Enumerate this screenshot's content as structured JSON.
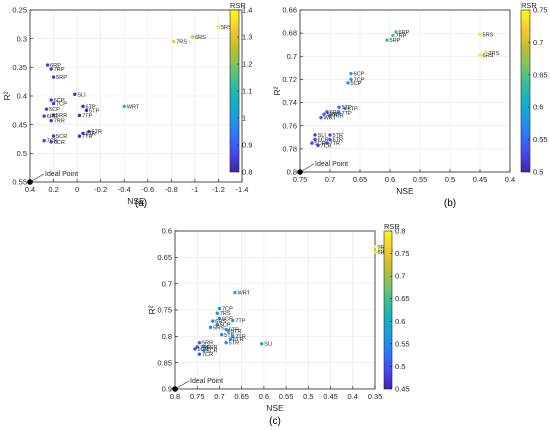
{
  "colormap": [
    "#3e26a8",
    "#4745f2",
    "#2f74fd",
    "#1a9ce0",
    "#10b3c4",
    "#3abf98",
    "#80c65a",
    "#c6c02b",
    "#f7cb33",
    "#f9fb15"
  ],
  "chart_data": [
    {
      "type": "scatter",
      "panel_label": "(a)",
      "xlabel": "NSE",
      "ylabel": "R²",
      "colorbar_label": "RSR",
      "xlim": [
        0.4,
        -1.4
      ],
      "ylim": [
        0.25,
        0.55
      ],
      "x_ticks": [
        0.4,
        0.2,
        0,
        -0.2,
        -0.4,
        -0.6,
        -0.8,
        -1,
        -1.2,
        -1.4
      ],
      "x_tick_labels": [
        "0.4",
        "0.2",
        "0",
        "-0.2",
        "-0.4",
        "-0.6",
        "-0.8",
        "-1",
        "-1.2",
        "-1.4"
      ],
      "y_ticks": [
        0.25,
        0.3,
        0.35,
        0.4,
        0.45,
        0.5,
        0.55
      ],
      "y_tick_labels": [
        "0.25",
        "0.3",
        "0.35",
        "0.4",
        "0.45",
        "0.5",
        "0.55"
      ],
      "crange": [
        0.8,
        1.4
      ],
      "c_ticks": [
        0.8,
        0.9,
        1.0,
        1.1,
        1.2,
        1.3,
        1.4
      ],
      "c_tick_labels": [
        "0.8",
        "0.9",
        "1",
        "1.1",
        "1.2",
        "1.3",
        "1.4"
      ],
      "ideal_point": {
        "x": 0.4,
        "y": 0.55,
        "label": "Ideal Point"
      },
      "points": [
        {
          "label": "5RS",
          "x": -1.2,
          "y": 0.28,
          "rsr": 1.38
        },
        {
          "label": "6RS",
          "x": -0.98,
          "y": 0.297,
          "rsr": 1.3
        },
        {
          "label": "7RS",
          "x": -0.82,
          "y": 0.305,
          "rsr": 1.32
        },
        {
          "label": "WRT",
          "x": -0.4,
          "y": 0.418,
          "rsr": 1.1
        },
        {
          "label": "6RP",
          "x": 0.25,
          "y": 0.346,
          "rsr": 0.84
        },
        {
          "label": "7RP",
          "x": 0.22,
          "y": 0.353,
          "rsr": 0.84
        },
        {
          "label": "5RP",
          "x": 0.2,
          "y": 0.367,
          "rsr": 0.85
        },
        {
          "label": "SLI",
          "x": 0.02,
          "y": 0.397,
          "rsr": 0.82
        },
        {
          "label": "6CP",
          "x": 0.22,
          "y": 0.407,
          "rsr": 0.84
        },
        {
          "label": "7CP",
          "x": 0.2,
          "y": 0.413,
          "rsr": 0.84
        },
        {
          "label": "6TP",
          "x": -0.05,
          "y": 0.418,
          "rsr": 0.82
        },
        {
          "label": "5CP",
          "x": 0.26,
          "y": 0.423,
          "rsr": 0.85
        },
        {
          "label": "5TP",
          "x": -0.08,
          "y": 0.425,
          "rsr": 0.82
        },
        {
          "label": "5RR",
          "x": 0.2,
          "y": 0.433,
          "rsr": 0.84
        },
        {
          "label": "6RR",
          "x": 0.28,
          "y": 0.435,
          "rsr": 0.85
        },
        {
          "label": "7TP",
          "x": -0.02,
          "y": 0.434,
          "rsr": 0.82
        },
        {
          "label": "7RR",
          "x": 0.22,
          "y": 0.443,
          "rsr": 0.84
        },
        {
          "label": "5TR",
          "x": -0.1,
          "y": 0.462,
          "rsr": 0.82
        },
        {
          "label": "6TR",
          "x": -0.05,
          "y": 0.465,
          "rsr": 0.82
        },
        {
          "label": "7TR",
          "x": -0.02,
          "y": 0.47,
          "rsr": 0.82
        },
        {
          "label": "5CR",
          "x": 0.2,
          "y": 0.47,
          "rsr": 0.84
        },
        {
          "label": "7CR",
          "x": 0.28,
          "y": 0.478,
          "rsr": 0.85
        },
        {
          "label": "6CR",
          "x": 0.22,
          "y": 0.48,
          "rsr": 0.84
        }
      ]
    },
    {
      "type": "scatter",
      "panel_label": "(b)",
      "xlabel": "NSE",
      "ylabel": "R²",
      "colorbar_label": "RSR",
      "xlim": [
        0.75,
        0.4
      ],
      "ylim": [
        0.66,
        0.8
      ],
      "x_ticks": [
        0.75,
        0.7,
        0.65,
        0.6,
        0.55,
        0.5,
        0.45,
        0.4
      ],
      "x_tick_labels": [
        "0.75",
        "0.7",
        "0.65",
        "0.6",
        "0.55",
        "0.5",
        "0.45",
        "0.4"
      ],
      "y_ticks": [
        0.66,
        0.68,
        0.7,
        0.72,
        0.74,
        0.76,
        0.78,
        0.8
      ],
      "y_tick_labels": [
        "0.66",
        "0.68",
        "0.7",
        "0.72",
        "0.74",
        "0.76",
        "0.78",
        "0.8"
      ],
      "crange": [
        0.5,
        0.75
      ],
      "c_ticks": [
        0.5,
        0.55,
        0.6,
        0.65,
        0.7,
        0.75
      ],
      "c_tick_labels": [
        "0.5",
        "0.55",
        "0.6",
        "0.65",
        "0.7",
        "0.75"
      ],
      "ideal_point": {
        "x": 0.75,
        "y": 0.8,
        "label": "Ideal Point"
      },
      "points": [
        {
          "label": "6RP",
          "x": 0.59,
          "y": 0.679,
          "rsr": 0.65
        },
        {
          "label": "7RP",
          "x": 0.595,
          "y": 0.682,
          "rsr": 0.65
        },
        {
          "label": "5RP",
          "x": 0.605,
          "y": 0.686,
          "rsr": 0.64
        },
        {
          "label": "5RS",
          "x": 0.45,
          "y": 0.681,
          "rsr": 0.74
        },
        {
          "label": "6RS",
          "x": 0.45,
          "y": 0.699,
          "rsr": 0.74
        },
        {
          "label": "7RS",
          "x": 0.44,
          "y": 0.697,
          "rsr": 0.73
        },
        {
          "label": "6CP",
          "x": 0.665,
          "y": 0.715,
          "rsr": 0.58
        },
        {
          "label": "7CP",
          "x": 0.665,
          "y": 0.72,
          "rsr": 0.58
        },
        {
          "label": "5CP",
          "x": 0.67,
          "y": 0.723,
          "rsr": 0.57
        },
        {
          "label": "5TP",
          "x": 0.685,
          "y": 0.744,
          "rsr": 0.55
        },
        {
          "label": "6TP",
          "x": 0.675,
          "y": 0.745,
          "rsr": 0.55
        },
        {
          "label": "6RR",
          "x": 0.705,
          "y": 0.748,
          "rsr": 0.54
        },
        {
          "label": "5RR",
          "x": 0.71,
          "y": 0.75,
          "rsr": 0.54
        },
        {
          "label": "7TP",
          "x": 0.685,
          "y": 0.749,
          "rsr": 0.55
        },
        {
          "label": "7RR",
          "x": 0.7,
          "y": 0.751,
          "rsr": 0.54
        },
        {
          "label": "WRT",
          "x": 0.715,
          "y": 0.753,
          "rsr": 0.54
        },
        {
          "label": "SLI",
          "x": 0.725,
          "y": 0.768,
          "rsr": 0.52
        },
        {
          "label": "5TR",
          "x": 0.7,
          "y": 0.768,
          "rsr": 0.53
        },
        {
          "label": "6TR",
          "x": 0.7,
          "y": 0.772,
          "rsr": 0.53
        },
        {
          "label": "6CR",
          "x": 0.725,
          "y": 0.772,
          "rsr": 0.52
        },
        {
          "label": "5CR",
          "x": 0.73,
          "y": 0.775,
          "rsr": 0.52
        },
        {
          "label": "7TR",
          "x": 0.705,
          "y": 0.775,
          "rsr": 0.53
        },
        {
          "label": "7CR",
          "x": 0.72,
          "y": 0.777,
          "rsr": 0.52
        }
      ]
    },
    {
      "type": "scatter",
      "panel_label": "(c)",
      "xlabel": "NSE",
      "ylabel": "R²",
      "colorbar_label": "RSR",
      "xlim": [
        0.8,
        0.35
      ],
      "ylim": [
        0.6,
        0.9
      ],
      "x_ticks": [
        0.8,
        0.75,
        0.7,
        0.65,
        0.6,
        0.55,
        0.5,
        0.45,
        0.4,
        0.35
      ],
      "x_tick_labels": [
        "0.8",
        "0.75",
        "0.7",
        "0.65",
        "0.6",
        "0.55",
        "0.5",
        "0.45",
        "0.4",
        "0.35"
      ],
      "y_ticks": [
        0.6,
        0.65,
        0.7,
        0.75,
        0.8,
        0.85,
        0.9
      ],
      "y_tick_labels": [
        "0.6",
        "0.65",
        "0.7",
        "0.75",
        "0.8",
        "0.85",
        "0.9"
      ],
      "crange": [
        0.45,
        0.8
      ],
      "c_ticks": [
        0.45,
        0.5,
        0.55,
        0.6,
        0.65,
        0.7,
        0.75,
        0.8
      ],
      "c_tick_labels": [
        "0.45",
        "0.5",
        "0.55",
        "0.6",
        "0.65",
        "0.7",
        "0.75",
        "0.8"
      ],
      "ideal_point": {
        "x": 0.8,
        "y": 0.9,
        "label": "Ideal Point"
      },
      "points": [
        {
          "label": "9RS",
          "x": 0.35,
          "y": 0.63,
          "rsr": 0.8
        },
        {
          "label": "7RS",
          "x": 0.34,
          "y": 0.636,
          "rsr": 0.79
        },
        {
          "label": "6RS",
          "x": 0.35,
          "y": 0.64,
          "rsr": 0.78
        },
        {
          "label": "WRT",
          "x": 0.665,
          "y": 0.717,
          "rsr": 0.58
        },
        {
          "label": "7CP",
          "x": 0.7,
          "y": 0.747,
          "rsr": 0.55
        },
        {
          "label": "7RS",
          "x": 0.705,
          "y": 0.756,
          "rsr": 0.55
        },
        {
          "label": "6CP",
          "x": 0.7,
          "y": 0.766,
          "rsr": 0.55
        },
        {
          "label": "6RS",
          "x": 0.715,
          "y": 0.771,
          "rsr": 0.54
        },
        {
          "label": "7TP",
          "x": 0.67,
          "y": 0.77,
          "rsr": 0.56
        },
        {
          "label": "5CP",
          "x": 0.705,
          "y": 0.778,
          "rsr": 0.55
        },
        {
          "label": "5RS",
          "x": 0.72,
          "y": 0.783,
          "rsr": 0.54
        },
        {
          "label": "6TP",
          "x": 0.685,
          "y": 0.787,
          "rsr": 0.55
        },
        {
          "label": "5TR",
          "x": 0.68,
          "y": 0.79,
          "rsr": 0.55
        },
        {
          "label": "5TP",
          "x": 0.695,
          "y": 0.797,
          "rsr": 0.55
        },
        {
          "label": "7TR",
          "x": 0.67,
          "y": 0.8,
          "rsr": 0.56
        },
        {
          "label": "6TR",
          "x": 0.675,
          "y": 0.805,
          "rsr": 0.56
        },
        {
          "label": "5TR",
          "x": 0.685,
          "y": 0.812,
          "rsr": 0.55
        },
        {
          "label": "SLI",
          "x": 0.605,
          "y": 0.814,
          "rsr": 0.6
        },
        {
          "label": "5RR",
          "x": 0.745,
          "y": 0.812,
          "rsr": 0.51
        },
        {
          "label": "7RR",
          "x": 0.75,
          "y": 0.82,
          "rsr": 0.51
        },
        {
          "label": "6RR",
          "x": 0.735,
          "y": 0.82,
          "rsr": 0.52
        },
        {
          "label": "5CR",
          "x": 0.755,
          "y": 0.824,
          "rsr": 0.5
        },
        {
          "label": "6CR",
          "x": 0.735,
          "y": 0.827,
          "rsr": 0.52
        },
        {
          "label": "7CR",
          "x": 0.745,
          "y": 0.834,
          "rsr": 0.51
        }
      ]
    }
  ]
}
